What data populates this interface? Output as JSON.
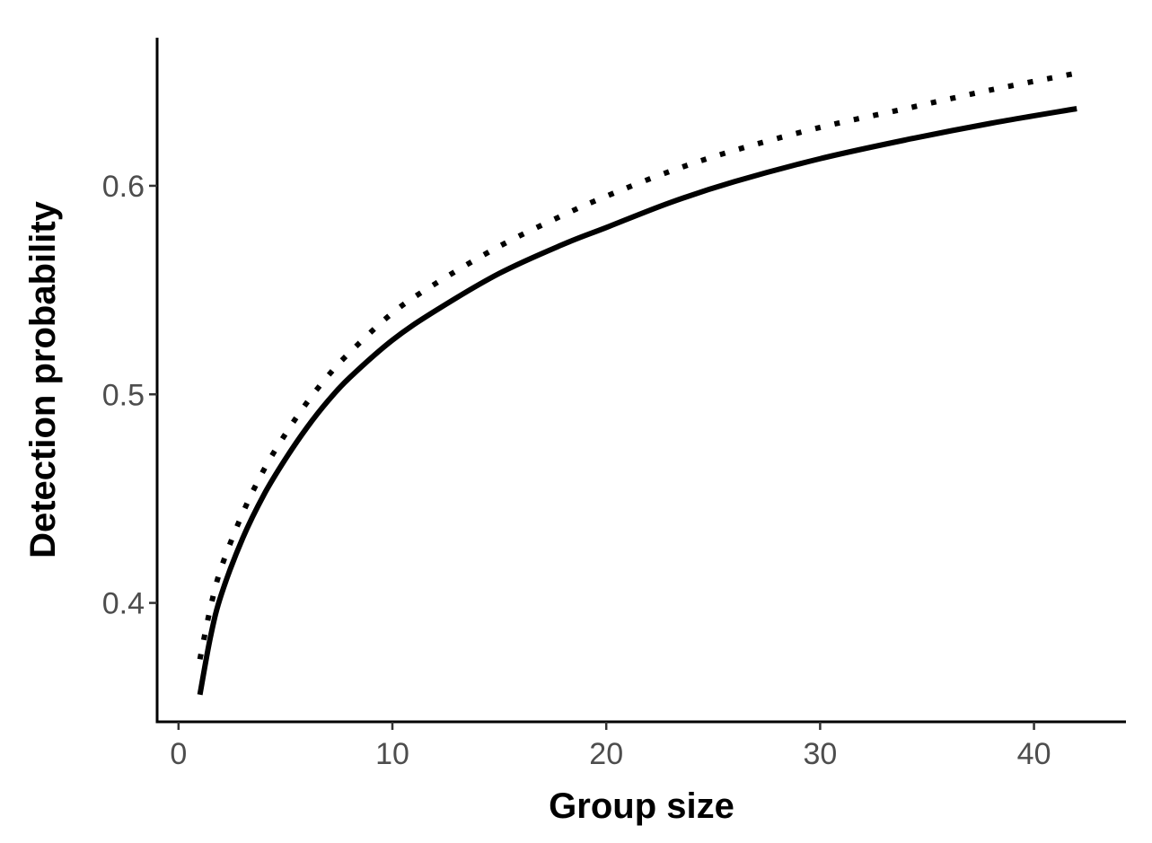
{
  "chart_data": {
    "type": "line",
    "title": "",
    "xlabel": "Group size",
    "ylabel": "Detection probability",
    "xlim": [
      -1,
      44.3
    ],
    "ylim": [
      0.343,
      0.671
    ],
    "x_ticks": [
      0,
      10,
      20,
      30,
      40
    ],
    "x_tick_labels": [
      "0",
      "10",
      "20",
      "30",
      "40"
    ],
    "y_ticks": [
      0.4,
      0.5,
      0.6
    ],
    "y_tick_labels": [
      "0.4",
      "0.5",
      "0.6"
    ],
    "grid": false,
    "legend": "none",
    "series": [
      {
        "line_style": "solid",
        "color": "#000000",
        "x": [
          1,
          1.5,
          2,
          3,
          4,
          5,
          6,
          7,
          8,
          10,
          12,
          15,
          18,
          20,
          23,
          26,
          30,
          34,
          38,
          42
        ],
        "y": [
          0.356,
          0.384,
          0.404,
          0.431,
          0.452,
          0.469,
          0.484,
          0.497,
          0.508,
          0.526,
          0.54,
          0.558,
          0.572,
          0.58,
          0.592,
          0.602,
          0.613,
          0.622,
          0.63,
          0.637
        ]
      },
      {
        "line_style": "dotted",
        "color": "#000000",
        "x": [
          1,
          1.5,
          2,
          3,
          4,
          5,
          6,
          7,
          8,
          10,
          12,
          15,
          18,
          20,
          23,
          26,
          30,
          34,
          38,
          42
        ],
        "y": [
          0.373,
          0.398,
          0.417,
          0.443,
          0.464,
          0.481,
          0.496,
          0.509,
          0.52,
          0.539,
          0.553,
          0.571,
          0.586,
          0.595,
          0.607,
          0.617,
          0.628,
          0.637,
          0.646,
          0.654
        ]
      }
    ]
  }
}
